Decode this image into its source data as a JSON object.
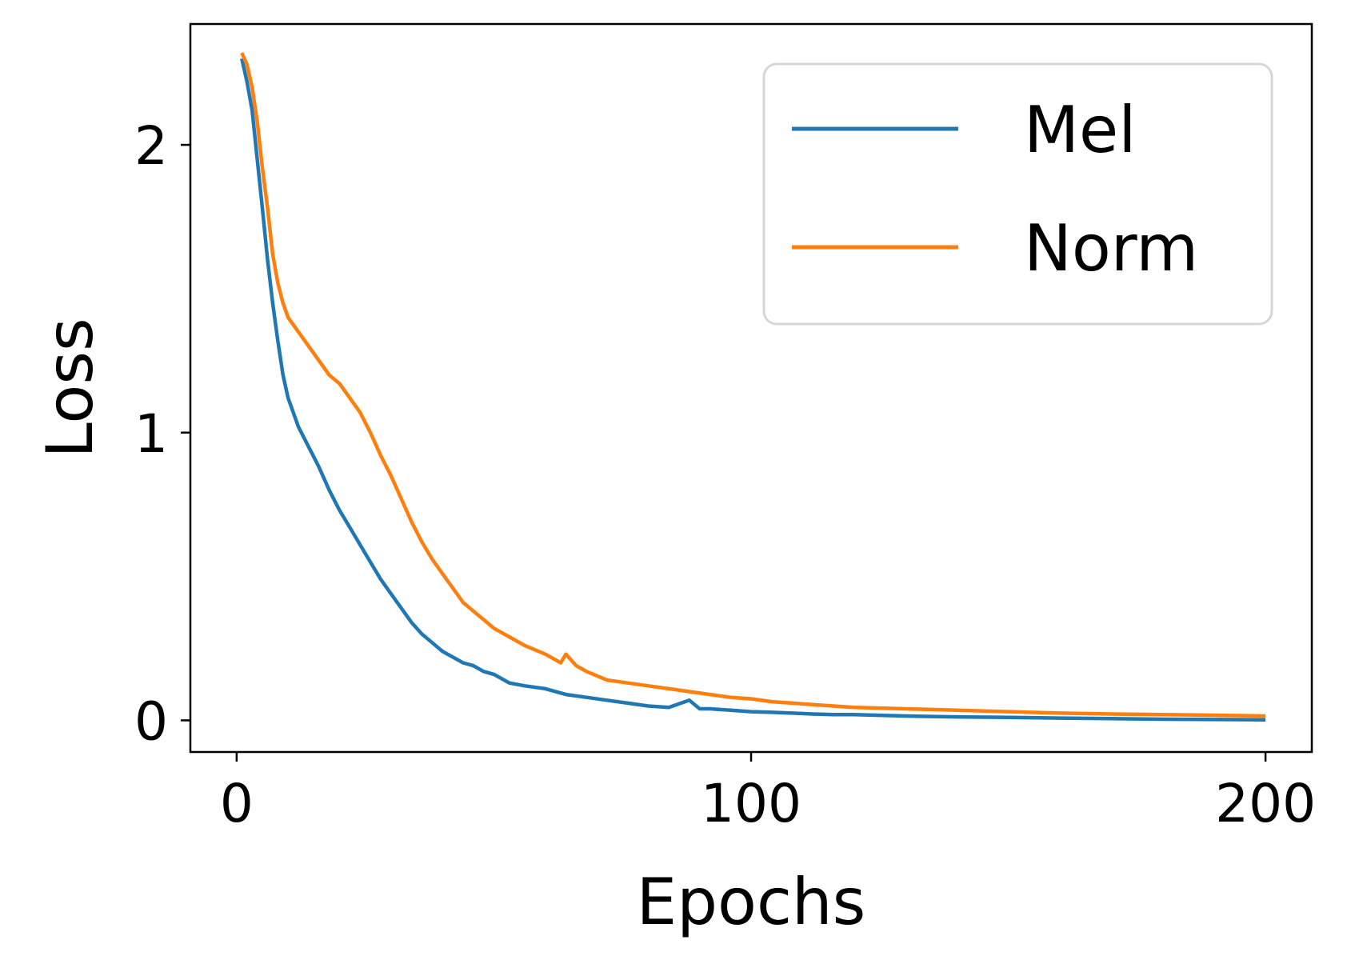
{
  "chart_data": {
    "type": "line",
    "title": "",
    "xlabel": "Epochs",
    "ylabel": "Loss",
    "xlim": [
      -9,
      209
    ],
    "ylim": [
      -0.11,
      2.42
    ],
    "xticks": [
      0,
      100,
      200
    ],
    "yticks": [
      0,
      1,
      2
    ],
    "xtick_labels": [
      "0",
      "100",
      "200"
    ],
    "ytick_labels": [
      "0",
      "1",
      "2"
    ],
    "grid": false,
    "legend": "top-right",
    "series": [
      {
        "name": "Mel",
        "color": "#1f77b4",
        "x": [
          1,
          2,
          3,
          4,
          5,
          6,
          7,
          8,
          9,
          10,
          12,
          14,
          16,
          18,
          20,
          22,
          24,
          26,
          28,
          30,
          32,
          34,
          36,
          38,
          40,
          42,
          44,
          46,
          48,
          50,
          53,
          56,
          60,
          64,
          68,
          72,
          76,
          80,
          84,
          88,
          90,
          92,
          96,
          100,
          104,
          108,
          112,
          116,
          120,
          130,
          140,
          150,
          160,
          170,
          180,
          190,
          200
        ],
        "y": [
          2.3,
          2.22,
          2.12,
          1.95,
          1.78,
          1.6,
          1.45,
          1.32,
          1.2,
          1.12,
          1.02,
          0.95,
          0.88,
          0.8,
          0.73,
          0.67,
          0.61,
          0.55,
          0.49,
          0.44,
          0.39,
          0.34,
          0.3,
          0.27,
          0.24,
          0.22,
          0.2,
          0.19,
          0.17,
          0.16,
          0.13,
          0.12,
          0.11,
          0.09,
          0.08,
          0.07,
          0.06,
          0.05,
          0.045,
          0.07,
          0.04,
          0.04,
          0.035,
          0.03,
          0.028,
          0.025,
          0.022,
          0.02,
          0.02,
          0.015,
          0.012,
          0.01,
          0.008,
          0.006,
          0.004,
          0.003,
          0.002
        ]
      },
      {
        "name": "Norm",
        "color": "#ff7f0e",
        "x": [
          1,
          2,
          3,
          4,
          5,
          6,
          7,
          8,
          9,
          10,
          12,
          14,
          16,
          18,
          20,
          22,
          24,
          26,
          28,
          30,
          32,
          34,
          36,
          38,
          40,
          42,
          44,
          46,
          48,
          50,
          53,
          56,
          60,
          63,
          64,
          66,
          68,
          72,
          76,
          80,
          84,
          88,
          92,
          96,
          100,
          104,
          108,
          112,
          116,
          120,
          130,
          140,
          150,
          160,
          170,
          180,
          190,
          200
        ],
        "y": [
          2.32,
          2.28,
          2.2,
          2.08,
          1.92,
          1.78,
          1.62,
          1.52,
          1.45,
          1.4,
          1.35,
          1.3,
          1.25,
          1.2,
          1.17,
          1.12,
          1.07,
          1.0,
          0.92,
          0.85,
          0.77,
          0.69,
          0.62,
          0.56,
          0.51,
          0.46,
          0.41,
          0.38,
          0.35,
          0.32,
          0.29,
          0.26,
          0.23,
          0.2,
          0.23,
          0.19,
          0.17,
          0.14,
          0.13,
          0.12,
          0.11,
          0.1,
          0.09,
          0.08,
          0.075,
          0.065,
          0.06,
          0.055,
          0.05,
          0.045,
          0.04,
          0.035,
          0.03,
          0.025,
          0.022,
          0.02,
          0.018,
          0.015
        ]
      }
    ]
  }
}
